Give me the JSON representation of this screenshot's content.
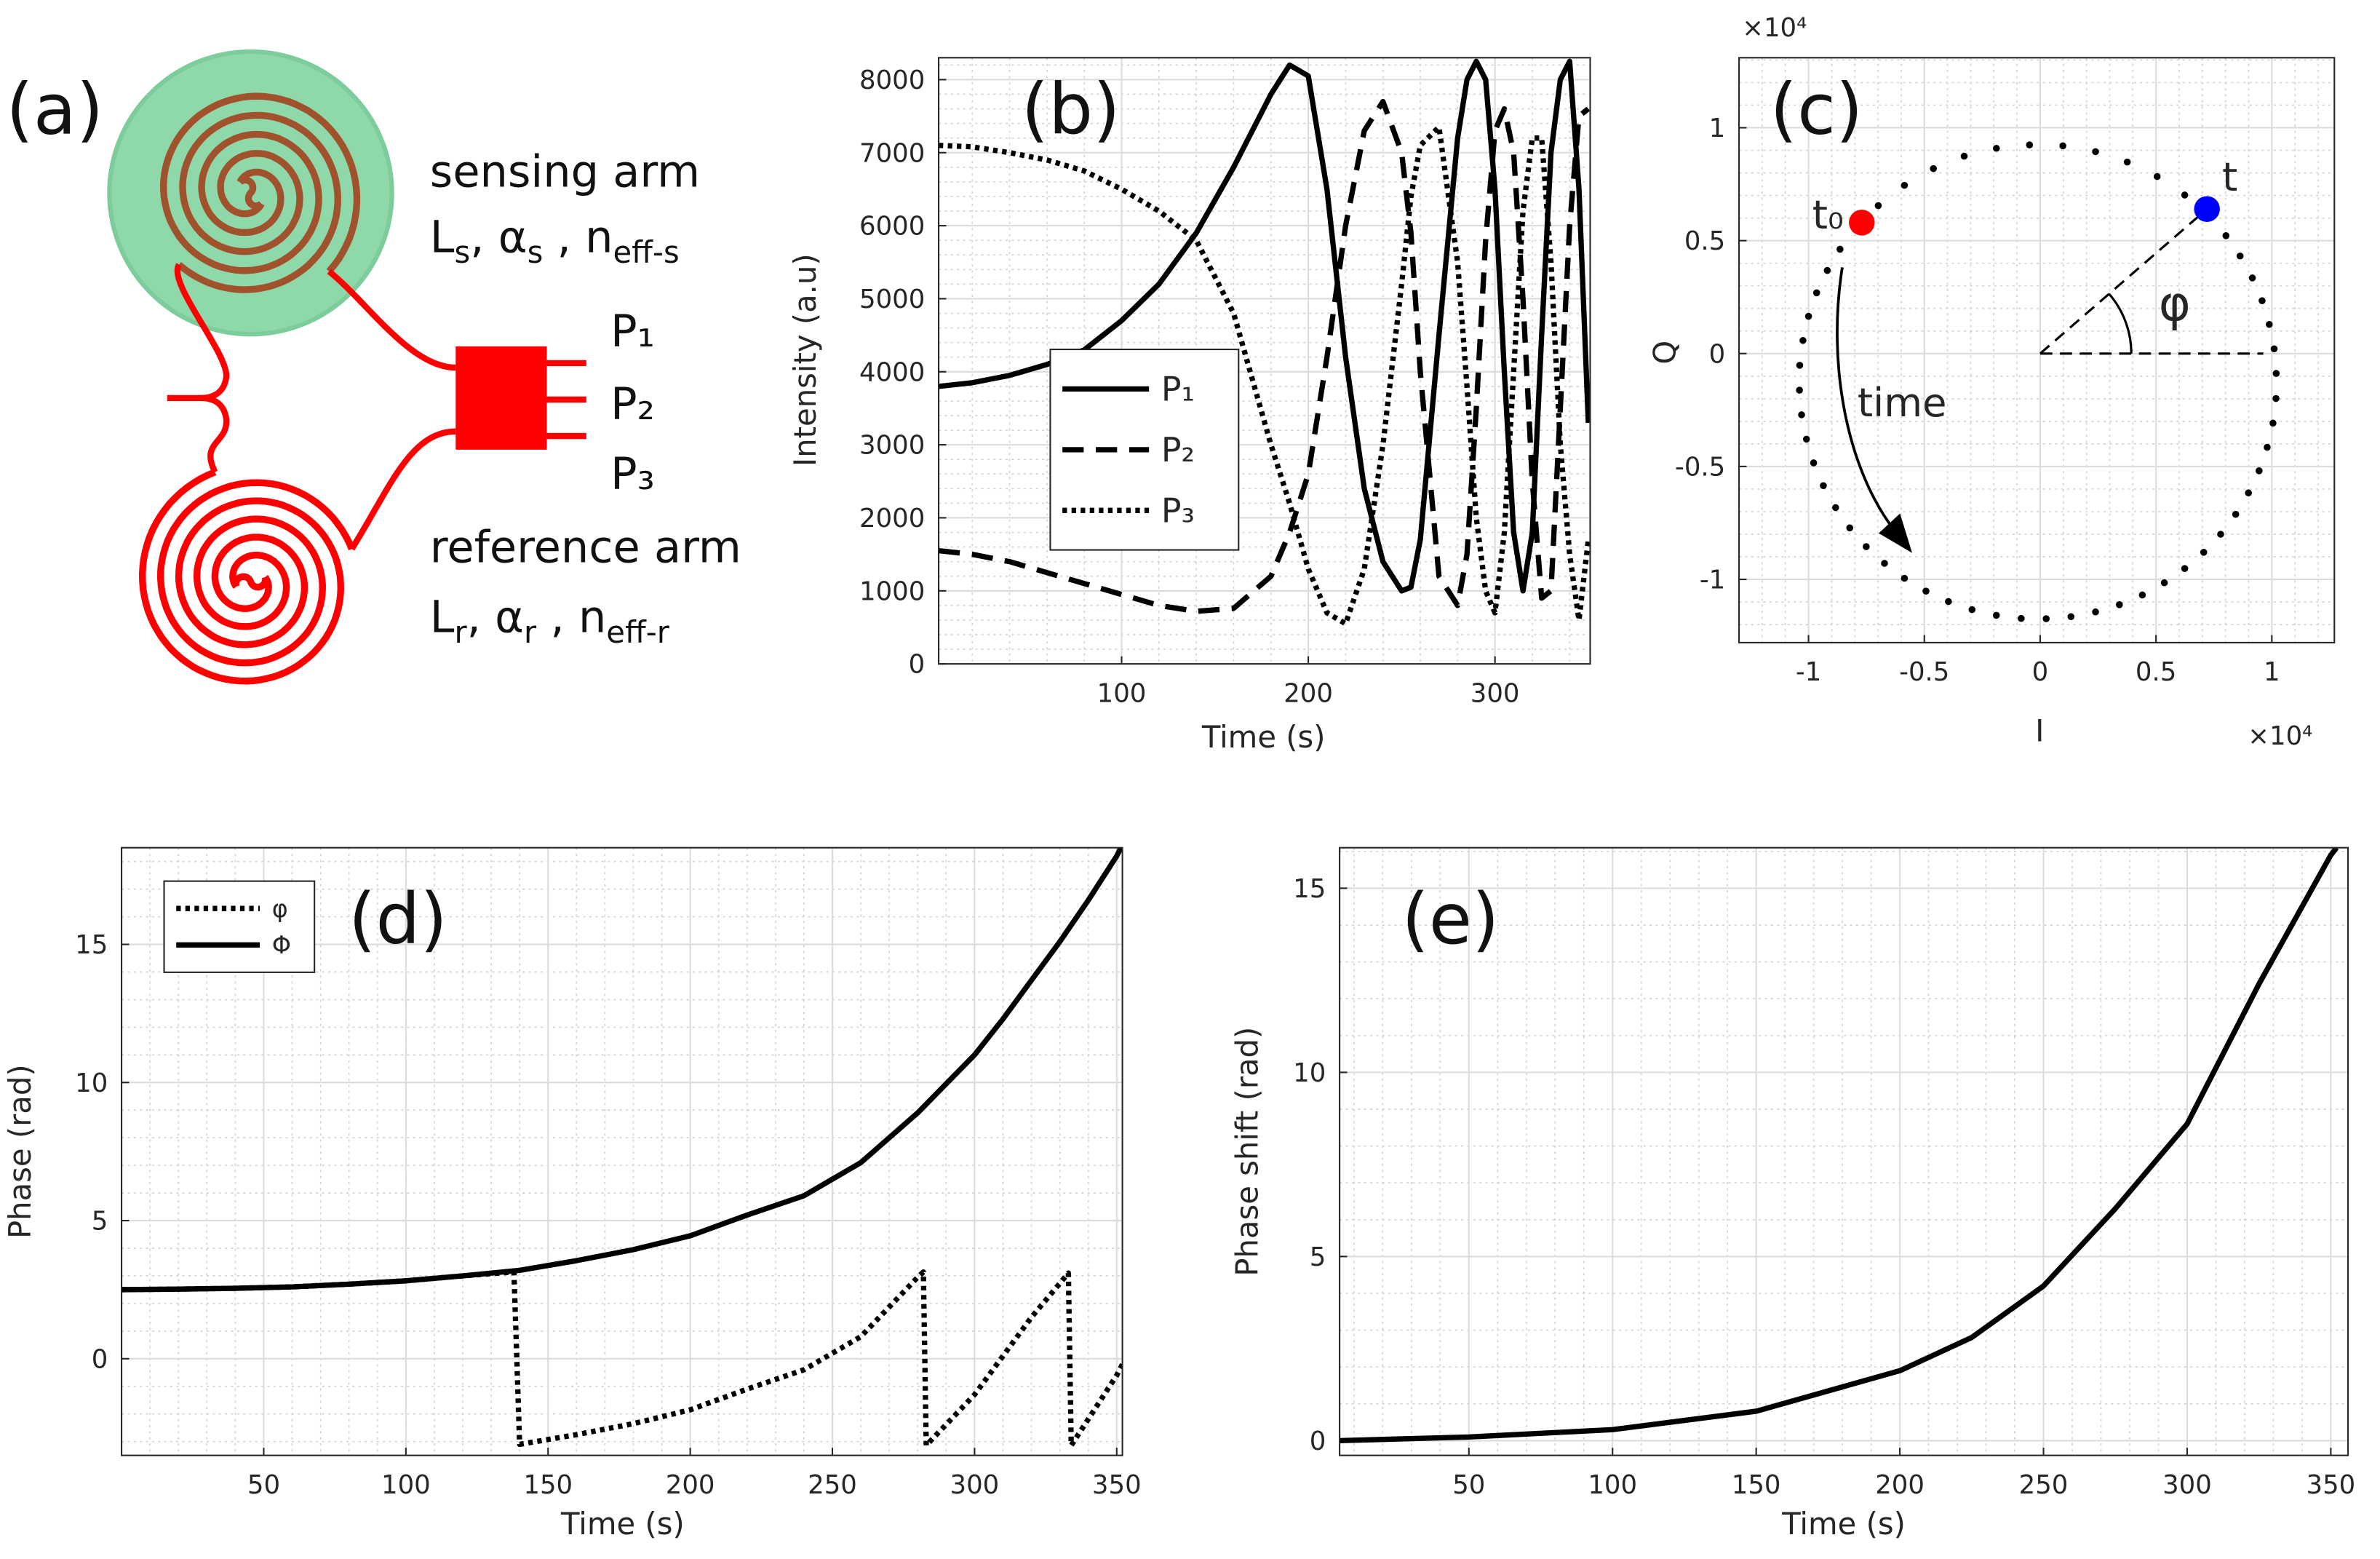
{
  "diagram": {
    "label": "(a)",
    "sensing_label": "sensing arm",
    "sensing_params": [
      {
        "text": "L",
        "sub": "s"
      },
      {
        "text": ", α",
        "sub": "s"
      },
      {
        "text": " , n",
        "sub": "eff-s"
      }
    ],
    "ports": [
      "P₁",
      "P₂",
      "P₃"
    ],
    "reference_label": "reference arm",
    "reference_params": [
      {
        "text": "L",
        "sub": "r"
      },
      {
        "text": ", α",
        "sub": "r"
      },
      {
        "text": " , n",
        "sub": "eff-r"
      }
    ]
  },
  "chart_data": [
    {
      "type": "line",
      "label": "(b)",
      "xlabel": "Time (s)",
      "ylabel": "Intensity (a.u)",
      "x": [
        2,
        20,
        40,
        60,
        80,
        100,
        120,
        140,
        160,
        180,
        190,
        200,
        210,
        220,
        230,
        240,
        250,
        255,
        260,
        270,
        280,
        285,
        290,
        295,
        300,
        305,
        310,
        315,
        320,
        325,
        330,
        335,
        340,
        345,
        350
      ],
      "series": [
        {
          "name": "P₁",
          "color": "#000000",
          "style": "solid",
          "values": [
            3800,
            3850,
            3950,
            4100,
            4300,
            4700,
            5200,
            5900,
            6800,
            7800,
            8200,
            8050,
            6500,
            4200,
            2400,
            1400,
            1000,
            1050,
            1700,
            4500,
            7200,
            8000,
            8250,
            8000,
            6500,
            4000,
            1800,
            1000,
            1800,
            4500,
            7000,
            8000,
            8250,
            6500,
            3300
          ]
        },
        {
          "name": "P₂",
          "color": "#000000",
          "style": "dashed",
          "values": [
            1550,
            1500,
            1400,
            1250,
            1100,
            950,
            800,
            720,
            760,
            1200,
            1800,
            2600,
            4200,
            6000,
            7300,
            7700,
            7000,
            5900,
            4000,
            1200,
            800,
            1500,
            3500,
            5800,
            7300,
            7600,
            7000,
            5000,
            2500,
            900,
            1000,
            3500,
            6000,
            7500,
            7600
          ]
        },
        {
          "name": "P₃",
          "color": "#000000",
          "style": "dotted",
          "values": [
            7100,
            7080,
            7000,
            6900,
            6750,
            6500,
            6200,
            5800,
            4800,
            3000,
            2200,
            1300,
            700,
            550,
            1300,
            3000,
            5200,
            6400,
            7100,
            7350,
            5500,
            3800,
            2000,
            1000,
            700,
            1800,
            4000,
            6200,
            7200,
            7200,
            5500,
            3000,
            1500,
            600,
            1700
          ]
        }
      ],
      "xlim": [
        2,
        351
      ],
      "ylim": [
        0,
        8300
      ],
      "xticks": [
        100,
        200,
        300
      ],
      "yticks": [
        0,
        1000,
        2000,
        3000,
        4000,
        5000,
        6000,
        7000,
        8000
      ],
      "grid": true,
      "minor_grid": true,
      "legend": "lower center"
    },
    {
      "type": "scatter",
      "label": "(c)",
      "xlabel": "I",
      "ylabel": "Q",
      "x_exponent": "×10⁴",
      "y_exponent": "×10⁴",
      "series": [
        {
          "color": "#000000",
          "x": [
            -0.799,
            -0.864,
            -0.919,
            -0.965,
            -1.0,
            -1.024,
            -1.038,
            -1.039,
            -1.03,
            -1.009,
            -0.978,
            -0.936,
            -0.883,
            -0.822,
            -0.751,
            -0.672,
            -0.586,
            -0.493,
            -0.396,
            -0.294,
            -0.189,
            -0.082,
            0.026,
            0.133,
            0.239,
            0.342,
            0.441,
            0.536,
            0.624,
            0.706,
            0.779,
            0.844,
            0.899,
            0.945,
            0.98,
            1.005,
            1.018,
            1.019,
            1.01,
            0.989,
            0.958,
            0.916,
            0.863,
            0.802,
            0.731,
            0.624,
            0.505,
            0.376,
            0.239,
            0.098,
            -0.046,
            -0.189,
            -0.328,
            -0.461,
            -0.586,
            -0.699
          ],
          "values": [
            0.55,
            0.462,
            0.368,
            0.269,
            0.165,
            0.058,
            -0.052,
            -0.162,
            -0.271,
            -0.379,
            -0.484,
            -0.585,
            -0.682,
            -0.772,
            -0.855,
            -0.929,
            -0.995,
            -1.052,
            -1.098,
            -1.134,
            -1.159,
            -1.173,
            -1.174,
            -1.165,
            -1.144,
            -1.112,
            -1.069,
            -1.015,
            -0.952,
            -0.88,
            -0.8,
            -0.712,
            -0.617,
            -0.519,
            -0.415,
            -0.308,
            -0.199,
            -0.088,
            0.021,
            0.129,
            0.234,
            0.335,
            0.432,
            0.522,
            0.605,
            0.702,
            0.784,
            0.848,
            0.894,
            0.92,
            0.924,
            0.909,
            0.874,
            0.819,
            0.745,
            0.655
          ]
        }
      ],
      "markers": [
        {
          "name": "t₀",
          "x": -0.77,
          "y": 0.58,
          "color": "#ff0000"
        },
        {
          "name": "t",
          "x": 0.72,
          "y": 0.64,
          "color": "#0000ff"
        }
      ],
      "angle_label": "φ",
      "arrow_label": "time",
      "xlim": [
        -1.3,
        1.27
      ],
      "ylim": [
        -1.28,
        1.31
      ],
      "xticks": [
        -1,
        -0.5,
        0,
        0.5,
        1
      ],
      "yticks": [
        -1,
        -0.5,
        0,
        0.5,
        1
      ],
      "grid": true,
      "minor_grid": true
    },
    {
      "type": "line",
      "label": "(d)",
      "xlabel": "Time (s)",
      "ylabel": "Phase (rad)",
      "series": [
        {
          "name": "φ",
          "color": "#000000",
          "style": "dotted",
          "x": [
            0,
            20,
            40,
            60,
            80,
            100,
            120,
            138,
            140,
            160,
            180,
            200,
            220,
            240,
            260,
            280,
            282,
            283,
            300,
            320,
            333,
            334,
            350,
            352
          ],
          "values": [
            2.5,
            2.52,
            2.55,
            2.6,
            2.7,
            2.82,
            3.0,
            3.14,
            -3.1,
            -2.75,
            -2.35,
            -1.85,
            -1.1,
            -0.4,
            0.8,
            2.95,
            3.14,
            -3.14,
            -1.3,
            1.5,
            3.1,
            -3.14,
            -0.6,
            -0.2
          ]
        },
        {
          "name": "Φ",
          "color": "#000000",
          "style": "solid",
          "x": [
            0,
            20,
            40,
            60,
            80,
            100,
            120,
            140,
            160,
            180,
            200,
            220,
            240,
            260,
            280,
            300,
            310,
            320,
            330,
            340,
            350,
            352
          ],
          "values": [
            2.5,
            2.52,
            2.55,
            2.6,
            2.7,
            2.82,
            3.0,
            3.2,
            3.55,
            3.95,
            4.45,
            5.2,
            5.9,
            7.1,
            8.9,
            11.0,
            12.3,
            13.7,
            15.1,
            16.6,
            18.2,
            18.6
          ]
        }
      ],
      "xlim": [
        0,
        352
      ],
      "ylim": [
        -3.5,
        18.5
      ],
      "xticks": [
        50,
        100,
        150,
        200,
        250,
        300,
        350
      ],
      "yticks": [
        0,
        5,
        10,
        15
      ],
      "grid": true,
      "minor_grid": true,
      "legend": "upper left"
    },
    {
      "type": "line",
      "label": "(e)",
      "xlabel": "Time (s)",
      "ylabel": "Phase shift (rad)",
      "series": [
        {
          "color": "#000000",
          "style": "solid",
          "x": [
            5,
            50,
            100,
            150,
            200,
            225,
            250,
            275,
            300,
            325,
            350,
            352
          ],
          "values": [
            0,
            0.1,
            0.3,
            0.8,
            1.9,
            2.8,
            4.2,
            6.3,
            8.6,
            12.4,
            15.9,
            16.1
          ]
        }
      ],
      "xlim": [
        5,
        356
      ],
      "ylim": [
        -0.4,
        16.1
      ],
      "xticks": [
        50,
        100,
        150,
        200,
        250,
        300,
        350
      ],
      "yticks": [
        0,
        5,
        10,
        15
      ],
      "grid": true,
      "minor_grid": true
    }
  ]
}
